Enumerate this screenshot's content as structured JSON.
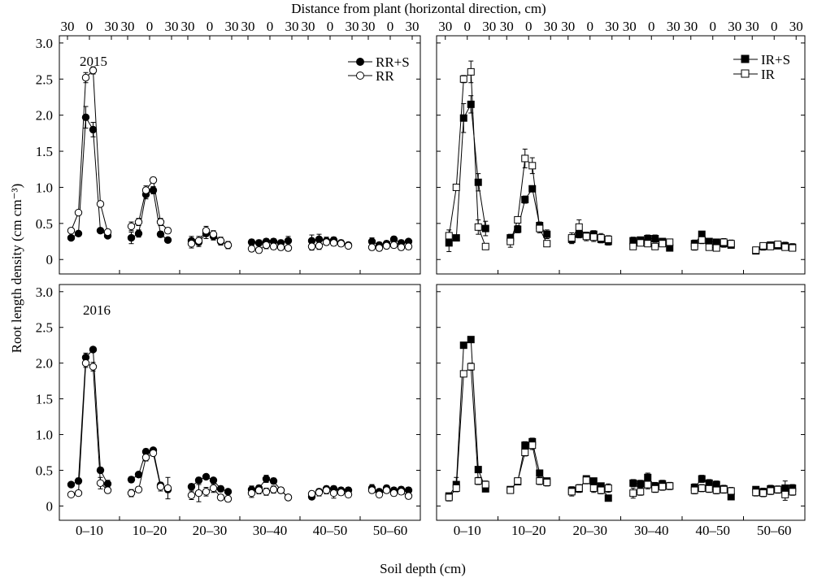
{
  "figure": {
    "top_xlabel": "Distance from plant (horizontal direction, cm)",
    "xlabel": "Soil depth (cm)",
    "ylabel": "Root length density (cm cm⁻³)",
    "top_ticks": [
      "30",
      "0",
      "30"
    ],
    "depth_labels": [
      "0–10",
      "10–20",
      "20–30",
      "30–40",
      "40–50",
      "50–60"
    ],
    "y_ticks": [
      "0",
      "0.5",
      "1.0",
      "1.5",
      "2.0",
      "2.5",
      "3.0"
    ]
  },
  "chart_data": [
    {
      "type": "line",
      "panel": "top-left",
      "year_label": "2015",
      "ylim": [
        -0.2,
        3.1
      ],
      "x_per_group": [
        -25,
        -15,
        -5,
        5,
        15,
        25
      ],
      "legend_position": "top-right",
      "series": [
        {
          "name": "RR+S",
          "marker": "filled-circle",
          "values": [
            [
              0.3,
              0.36,
              1.97,
              1.8,
              0.4,
              0.33
            ],
            [
              0.3,
              0.36,
              0.9,
              0.96,
              0.35,
              0.27
            ],
            [
              0.26,
              0.24,
              0.36,
              0.32,
              0.25,
              0.2
            ],
            [
              0.24,
              0.23,
              0.25,
              0.25,
              0.23,
              0.26
            ],
            [
              0.26,
              0.28,
              0.26,
              0.27,
              0.23,
              0.2
            ],
            [
              0.25,
              0.2,
              0.22,
              0.28,
              0.23,
              0.25
            ]
          ],
          "errors": [
            [
              0.03,
              0.03,
              0.15,
              0.1,
              0.03,
              0.03
            ],
            [
              0.08,
              0.05,
              0.06,
              0.05,
              0.04,
              0.03
            ],
            [
              0.06,
              0.06,
              0.07,
              0.05,
              0.05,
              0.05
            ],
            [
              0.04,
              0.04,
              0.04,
              0.04,
              0.04,
              0.06
            ],
            [
              0.08,
              0.07,
              0.05,
              0.04,
              0.04,
              0.03
            ],
            [
              0.05,
              0.04,
              0.04,
              0.04,
              0.04,
              0.03
            ]
          ]
        },
        {
          "name": "RR",
          "marker": "open-circle",
          "values": [
            [
              0.4,
              0.65,
              2.52,
              2.62,
              0.77,
              0.38
            ],
            [
              0.46,
              0.52,
              0.96,
              1.1,
              0.52,
              0.4
            ],
            [
              0.22,
              0.26,
              0.4,
              0.35,
              0.26,
              0.2
            ],
            [
              0.15,
              0.13,
              0.2,
              0.18,
              0.17,
              0.16
            ],
            [
              0.18,
              0.19,
              0.24,
              0.23,
              0.22,
              0.19
            ],
            [
              0.17,
              0.16,
              0.19,
              0.2,
              0.17,
              0.18
            ]
          ],
          "errors": [
            [
              0.03,
              0.03,
              0.07,
              0.05,
              0.03,
              0.03
            ],
            [
              0.06,
              0.05,
              0.06,
              0.04,
              0.05,
              0.04
            ],
            [
              0.06,
              0.06,
              0.06,
              0.05,
              0.05,
              0.04
            ],
            [
              0.04,
              0.04,
              0.05,
              0.04,
              0.04,
              0.04
            ],
            [
              0.05,
              0.05,
              0.04,
              0.04,
              0.04,
              0.03
            ],
            [
              0.04,
              0.04,
              0.04,
              0.04,
              0.04,
              0.04
            ]
          ]
        }
      ]
    },
    {
      "type": "line",
      "panel": "top-right",
      "year_label": "",
      "ylim": [
        -0.2,
        3.1
      ],
      "x_per_group": [
        -25,
        -15,
        -5,
        5,
        15,
        25
      ],
      "legend_position": "top-right",
      "series": [
        {
          "name": "IR+S",
          "marker": "filled-square",
          "values": [
            [
              0.23,
              0.3,
              1.96,
              2.15,
              1.07,
              0.43
            ],
            [
              0.3,
              0.42,
              0.83,
              0.98,
              0.47,
              0.35
            ],
            [
              0.28,
              0.35,
              0.33,
              0.35,
              0.28,
              0.25
            ],
            [
              0.26,
              0.27,
              0.29,
              0.29,
              0.25,
              0.16
            ],
            [
              0.22,
              0.35,
              0.25,
              0.24,
              0.22,
              0.2
            ],
            [
              0.12,
              0.18,
              0.2,
              0.19,
              0.19,
              0.17
            ]
          ],
          "errors": [
            [
              0.12,
              0.03,
              0.2,
              0.12,
              0.12,
              0.1
            ],
            [
              0.05,
              0.05,
              0.05,
              0.04,
              0.05,
              0.06
            ],
            [
              0.06,
              0.05,
              0.05,
              0.05,
              0.05,
              0.05
            ],
            [
              0.05,
              0.04,
              0.05,
              0.05,
              0.04,
              0.03
            ],
            [
              0.05,
              0.04,
              0.04,
              0.04,
              0.05,
              0.04
            ],
            [
              0.03,
              0.05,
              0.04,
              0.04,
              0.05,
              0.05
            ]
          ]
        },
        {
          "name": "IR",
          "marker": "open-square",
          "values": [
            [
              0.33,
              1.0,
              2.5,
              2.6,
              0.45,
              0.18
            ],
            [
              0.25,
              0.55,
              1.4,
              1.3,
              0.43,
              0.22
            ],
            [
              0.3,
              0.45,
              0.32,
              0.31,
              0.3,
              0.28
            ],
            [
              0.18,
              0.23,
              0.22,
              0.18,
              0.22,
              0.24
            ],
            [
              0.18,
              0.27,
              0.17,
              0.16,
              0.24,
              0.22
            ],
            [
              0.13,
              0.19,
              0.18,
              0.21,
              0.17,
              0.16
            ]
          ],
          "errors": [
            [
              0.08,
              0.03,
              0.05,
              0.15,
              0.1,
              0.03
            ],
            [
              0.08,
              0.04,
              0.13,
              0.11,
              0.06,
              0.04
            ],
            [
              0.07,
              0.1,
              0.06,
              0.06,
              0.06,
              0.05
            ],
            [
              0.04,
              0.04,
              0.04,
              0.04,
              0.04,
              0.04
            ],
            [
              0.05,
              0.05,
              0.04,
              0.04,
              0.05,
              0.05
            ],
            [
              0.04,
              0.04,
              0.04,
              0.04,
              0.04,
              0.04
            ]
          ]
        }
      ]
    },
    {
      "type": "line",
      "panel": "bottom-left",
      "year_label": "2016",
      "ylim": [
        -0.2,
        3.1
      ],
      "x_per_group": [
        -25,
        -15,
        -5,
        5,
        15,
        25
      ],
      "legend_position": "none",
      "series": [
        {
          "name": "RR+S",
          "marker": "filled-circle",
          "values": [
            [
              0.3,
              0.35,
              2.08,
              2.19,
              0.5,
              0.31
            ],
            [
              0.37,
              0.44,
              0.76,
              0.78,
              0.29,
              0.23
            ],
            [
              0.27,
              0.36,
              0.41,
              0.36,
              0.24,
              0.2
            ],
            [
              0.23,
              0.25,
              0.38,
              0.35,
              0.22,
              0.12
            ],
            [
              0.13,
              0.2,
              0.24,
              0.24,
              0.22,
              0.22
            ],
            [
              0.25,
              0.2,
              0.25,
              0.22,
              0.23,
              0.22
            ]
          ],
          "errors": [
            [
              0.03,
              0.04,
              0.06,
              0.03,
              0.04,
              0.05
            ],
            [
              0.04,
              0.03,
              0.04,
              0.03,
              0.04,
              0.04
            ],
            [
              0.04,
              0.04,
              0.03,
              0.03,
              0.04,
              0.03
            ],
            [
              0.05,
              0.04,
              0.05,
              0.04,
              0.04,
              0.03
            ],
            [
              0.04,
              0.04,
              0.04,
              0.04,
              0.04,
              0.04
            ],
            [
              0.05,
              0.04,
              0.04,
              0.04,
              0.04,
              0.04
            ]
          ]
        },
        {
          "name": "RR",
          "marker": "open-circle",
          "values": [
            [
              0.16,
              0.18,
              2.0,
              1.95,
              0.32,
              0.22
            ],
            [
              0.18,
              0.23,
              0.68,
              0.74,
              0.27,
              0.25
            ],
            [
              0.15,
              0.18,
              0.2,
              0.25,
              0.12,
              0.1
            ],
            [
              0.18,
              0.22,
              0.2,
              0.23,
              0.22,
              0.12
            ],
            [
              0.17,
              0.19,
              0.22,
              0.18,
              0.19,
              0.16
            ],
            [
              0.22,
              0.16,
              0.22,
              0.18,
              0.2,
              0.14
            ]
          ],
          "errors": [
            [
              0.03,
              0.03,
              0.06,
              0.06,
              0.08,
              0.04
            ],
            [
              0.05,
              0.04,
              0.05,
              0.04,
              0.06,
              0.15
            ],
            [
              0.06,
              0.12,
              0.06,
              0.06,
              0.04,
              0.04
            ],
            [
              0.06,
              0.05,
              0.05,
              0.05,
              0.04,
              0.03
            ],
            [
              0.04,
              0.05,
              0.05,
              0.07,
              0.04,
              0.04
            ],
            [
              0.04,
              0.04,
              0.04,
              0.04,
              0.04,
              0.04
            ]
          ]
        }
      ]
    },
    {
      "type": "line",
      "panel": "bottom-right",
      "year_label": "",
      "ylim": [
        -0.2,
        3.1
      ],
      "x_per_group": [
        -25,
        -15,
        -5,
        5,
        15,
        25
      ],
      "legend_position": "none",
      "series": [
        {
          "name": "IR+S",
          "marker": "filled-square",
          "values": [
            [
              0.14,
              0.3,
              2.25,
              2.33,
              0.51,
              0.24
            ],
            [
              0.23,
              0.34,
              0.85,
              0.9,
              0.46,
              0.35
            ],
            [
              0.22,
              0.24,
              0.38,
              0.35,
              0.28,
              0.11
            ],
            [
              0.32,
              0.31,
              0.4,
              0.28,
              0.31,
              0.28
            ],
            [
              0.26,
              0.38,
              0.32,
              0.3,
              0.24,
              0.13
            ],
            [
              0.23,
              0.2,
              0.24,
              0.23,
              0.25,
              0.25
            ]
          ],
          "errors": [
            [
              0.03,
              0.1,
              0.03,
              0.03,
              0.03,
              0.03
            ],
            [
              0.03,
              0.04,
              0.05,
              0.05,
              0.04,
              0.04
            ],
            [
              0.05,
              0.05,
              0.04,
              0.04,
              0.04,
              0.03
            ],
            [
              0.05,
              0.05,
              0.06,
              0.05,
              0.05,
              0.05
            ],
            [
              0.05,
              0.05,
              0.05,
              0.05,
              0.05,
              0.04
            ],
            [
              0.04,
              0.05,
              0.05,
              0.05,
              0.1,
              0.05
            ]
          ]
        },
        {
          "name": "IR",
          "marker": "open-square",
          "values": [
            [
              0.12,
              0.25,
              1.85,
              1.95,
              0.35,
              0.3
            ],
            [
              0.22,
              0.35,
              0.75,
              0.85,
              0.35,
              0.33
            ],
            [
              0.2,
              0.25,
              0.36,
              0.25,
              0.22,
              0.25
            ],
            [
              0.18,
              0.2,
              0.3,
              0.24,
              0.27,
              0.28
            ],
            [
              0.22,
              0.25,
              0.24,
              0.22,
              0.23,
              0.21
            ],
            [
              0.19,
              0.18,
              0.21,
              0.23,
              0.16,
              0.2
            ]
          ],
          "errors": [
            [
              0.05,
              0.05,
              0.04,
              0.05,
              0.05,
              0.05
            ],
            [
              0.04,
              0.04,
              0.05,
              0.06,
              0.05,
              0.05
            ],
            [
              0.06,
              0.05,
              0.05,
              0.06,
              0.05,
              0.06
            ],
            [
              0.07,
              0.05,
              0.06,
              0.05,
              0.05,
              0.05
            ],
            [
              0.05,
              0.05,
              0.05,
              0.05,
              0.05,
              0.05
            ],
            [
              0.05,
              0.05,
              0.05,
              0.05,
              0.08,
              0.05
            ]
          ]
        }
      ]
    }
  ]
}
